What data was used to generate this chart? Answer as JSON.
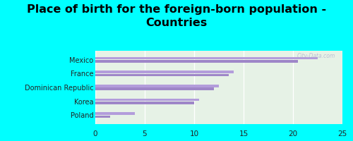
{
  "title": "Place of birth for the foreign-born population -\nCountries",
  "categories": [
    "Mexico",
    "France",
    "Dominican Republic",
    "Korea",
    "Poland"
  ],
  "values1": [
    22.5,
    14.0,
    12.5,
    10.5,
    4.0
  ],
  "values2": [
    20.5,
    13.5,
    12.0,
    10.0,
    1.5
  ],
  "bar_color1": "#b39ddb",
  "bar_color2": "#9e86c8",
  "background_outer": "#00ffff",
  "background_inner_top": "#e8f5e9",
  "background_inner_bottom": "#d4edda",
  "xlim": [
    0,
    25
  ],
  "xticks": [
    0,
    5,
    10,
    15,
    20,
    25
  ],
  "title_fontsize": 11.5,
  "watermark": "City-Data.com"
}
